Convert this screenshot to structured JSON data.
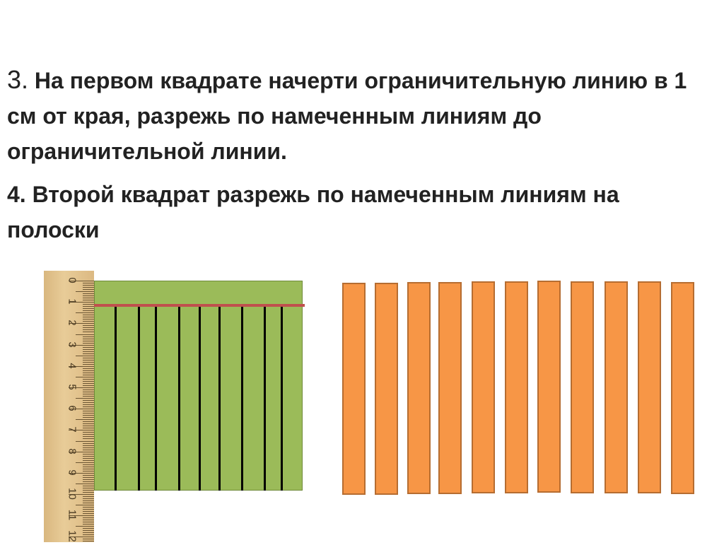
{
  "step3": {
    "number": "3.",
    "text": " На первом квадрате начерти ограничительную линию в 1 см от края, разрежь по намеченным линиям до ограничительной линии."
  },
  "step4": {
    "text": "4. Второй квадрат разрежь по намеченным линиям на полоски"
  },
  "ruler": {
    "labels": [
      "0",
      "1",
      "2",
      "3",
      "4",
      "5",
      "6",
      "7",
      "8",
      "9",
      "10",
      "11",
      "12"
    ]
  },
  "colors": {
    "green_square": "#9bbb59",
    "limit_line": "#c0504d",
    "cut_lines": "#000000",
    "strips": "#f79646",
    "strip_border": "#b66d31"
  },
  "first_square": {
    "cut_line_count": 9
  },
  "second_square": {
    "strip_count": 11
  }
}
